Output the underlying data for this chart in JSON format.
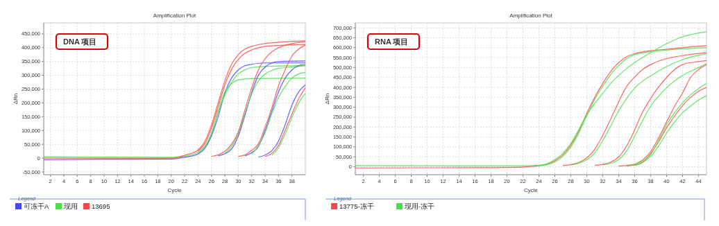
{
  "chart_data": [
    {
      "type": "line",
      "title": "Amplification Plot",
      "xlabel": "Cycle",
      "ylabel": "ΔRn",
      "legend_title": "Legend",
      "legend": "bottom",
      "grid": true,
      "marker": "none",
      "line_style": "solid",
      "annotations": [
        "DNA 项目"
      ],
      "xlim": [
        1,
        40
      ],
      "xticks": [
        2,
        4,
        6,
        8,
        10,
        12,
        14,
        16,
        18,
        20,
        22,
        24,
        26,
        28,
        30,
        32,
        34,
        36,
        38
      ],
      "ylim": [
        -60000,
        490000
      ],
      "yticks": [
        {
          "value": -50000,
          "label": "-50,000"
        },
        {
          "value": 0,
          "label": "0"
        },
        {
          "value": 50000,
          "label": "50,000"
        },
        {
          "value": 100000,
          "label": "100,000"
        },
        {
          "value": 150000,
          "label": "150,000"
        },
        {
          "value": 200000,
          "label": "200,000"
        },
        {
          "value": 250000,
          "label": "250,000"
        },
        {
          "value": 300000,
          "label": "300,000"
        },
        {
          "value": 350000,
          "label": "350,000"
        },
        {
          "value": 400000,
          "label": "400,000"
        },
        {
          "value": 450000,
          "label": "450,000"
        }
      ],
      "series": [
        {
          "name": "可冻干A",
          "color": "#4646ff",
          "x": [
            1,
            10,
            20,
            22,
            24,
            25,
            26,
            27,
            28,
            29,
            30,
            31,
            32,
            34,
            40
          ],
          "values": [
            -6000,
            -4000,
            -3000,
            3000,
            15000,
            35000,
            80000,
            150000,
            235000,
            290000,
            320000,
            335000,
            340000,
            345000,
            345000
          ]
        },
        {
          "name": "现用",
          "color": "#46e046",
          "x": [
            1,
            10,
            20,
            22,
            24,
            25,
            26,
            27,
            28,
            29,
            30,
            31,
            32,
            34,
            40
          ],
          "values": [
            5000,
            4000,
            3000,
            6000,
            22000,
            43000,
            90000,
            165000,
            228000,
            275000,
            305000,
            320000,
            328000,
            332000,
            335000
          ]
        },
        {
          "name": "13695",
          "color": "#ff4646",
          "x": [
            1,
            10,
            20,
            22,
            24,
            25,
            26,
            27,
            28,
            29,
            30,
            31,
            32,
            34,
            36,
            40
          ],
          "values": [
            0,
            0,
            0,
            10000,
            30000,
            60000,
            120000,
            200000,
            280000,
            340000,
            375000,
            395000,
            405000,
            415000,
            420000,
            425000
          ]
        },
        {
          "color": "#ff4646",
          "x": [
            24,
            25,
            26,
            27,
            28,
            29,
            30,
            31,
            32,
            34,
            40
          ],
          "values": [
            25000,
            52000,
            108000,
            185000,
            265000,
            322000,
            358000,
            380000,
            392000,
            405000,
            412000
          ]
        },
        {
          "color": "#46e046",
          "x": [
            24,
            25,
            26,
            27,
            28,
            29,
            30,
            32,
            40
          ],
          "values": [
            18000,
            40000,
            88000,
            170000,
            240000,
            270000,
            283000,
            288000,
            290000
          ]
        },
        {
          "color": "#4646ff",
          "x": [
            27,
            28,
            29,
            30,
            31,
            32,
            33,
            34,
            35,
            36,
            40
          ],
          "values": [
            8000,
            16000,
            33000,
            80000,
            155000,
            238000,
            300000,
            330000,
            345000,
            350000,
            352000
          ]
        },
        {
          "color": "#46e046",
          "x": [
            28,
            29,
            30,
            31,
            32,
            33,
            34,
            35,
            36,
            38,
            40
          ],
          "values": [
            18000,
            42000,
            88000,
            163000,
            232000,
            280000,
            305000,
            318000,
            325000,
            330000,
            335000
          ]
        },
        {
          "color": "#ff4646",
          "x": [
            26,
            27,
            28,
            29,
            30,
            31,
            32,
            33,
            34,
            35,
            36,
            38,
            40
          ],
          "values": [
            6000,
            12000,
            25000,
            50000,
            95000,
            175000,
            255000,
            320000,
            360000,
            385000,
            400000,
            415000,
            422000
          ]
        },
        {
          "color": "#4646ff",
          "x": [
            31,
            32,
            33,
            34,
            35,
            36,
            37,
            38,
            39,
            40
          ],
          "values": [
            8000,
            20000,
            42000,
            100000,
            170000,
            240000,
            290000,
            320000,
            335000,
            340000
          ]
        },
        {
          "color": "#46e046",
          "x": [
            32,
            33,
            34,
            35,
            36,
            37,
            38,
            39,
            40
          ],
          "values": [
            14000,
            45000,
            92000,
            160000,
            220000,
            260000,
            290000,
            305000,
            310000
          ]
        },
        {
          "color": "#ff4646",
          "x": [
            30,
            31,
            32,
            33,
            34,
            35,
            36,
            37,
            38,
            39,
            40
          ],
          "values": [
            6000,
            12000,
            28000,
            52000,
            112000,
            182000,
            262000,
            320000,
            370000,
            395000,
            410000
          ]
        },
        {
          "color": "#4646ff",
          "x": [
            33,
            34,
            35,
            36,
            37,
            38,
            39,
            40
          ],
          "values": [
            4000,
            11000,
            27000,
            62000,
            122000,
            192000,
            240000,
            265000
          ]
        },
        {
          "color": "#ff4646",
          "x": [
            34,
            35,
            36,
            37,
            38,
            39,
            40
          ],
          "values": [
            6000,
            17000,
            47000,
            102000,
            160000,
            215000,
            255000
          ]
        },
        {
          "color": "#46e046",
          "x": [
            35,
            36,
            37,
            38,
            39,
            40
          ],
          "values": [
            10000,
            38000,
            88000,
            147000,
            200000,
            235000
          ]
        }
      ]
    },
    {
      "type": "line",
      "title": "Amplification Plot",
      "xlabel": "Cycle",
      "ylabel": "ΔRn",
      "legend_title": "Legend",
      "legend": "bottom",
      "grid": true,
      "marker": "none",
      "line_style": "solid",
      "annotations": [
        "RNA 项目"
      ],
      "xlim": [
        1,
        45
      ],
      "xticks": [
        2,
        4,
        6,
        8,
        10,
        12,
        14,
        16,
        18,
        20,
        22,
        24,
        26,
        28,
        30,
        32,
        34,
        36,
        38,
        40,
        42,
        44
      ],
      "ylim": [
        -40000,
        725000
      ],
      "yticks": [
        {
          "value": 0,
          "label": "0"
        },
        {
          "value": 50000,
          "label": "50,000"
        },
        {
          "value": 100000,
          "label": "100,000"
        },
        {
          "value": 150000,
          "label": "150,000"
        },
        {
          "value": 200000,
          "label": "200,000"
        },
        {
          "value": 250000,
          "label": "250,000"
        },
        {
          "value": 300000,
          "label": "300,000"
        },
        {
          "value": 350000,
          "label": "350,000"
        },
        {
          "value": 400000,
          "label": "400,000"
        },
        {
          "value": 450000,
          "label": "450,000"
        },
        {
          "value": 500000,
          "label": "500,000"
        },
        {
          "value": 550000,
          "label": "550,000"
        },
        {
          "value": 600000,
          "label": "600,000"
        },
        {
          "value": 650000,
          "label": "650,000"
        },
        {
          "value": 700000,
          "label": "700,000"
        }
      ],
      "series": [
        {
          "name": "13775-冻干",
          "color": "#ff4646",
          "x": [
            1,
            10,
            20,
            24,
            25,
            26,
            27,
            28,
            29,
            30,
            31,
            32,
            33,
            34,
            35,
            36,
            38,
            40,
            42,
            45
          ],
          "values": [
            -6000,
            -5000,
            -4000,
            5000,
            12000,
            30000,
            60000,
            110000,
            180000,
            270000,
            350000,
            420000,
            480000,
            525000,
            555000,
            570000,
            585000,
            592000,
            600000,
            610000
          ]
        },
        {
          "name": "现用-冻干",
          "color": "#46e046",
          "x": [
            1,
            10,
            20,
            24,
            25,
            26,
            27,
            28,
            29,
            30,
            31,
            32,
            33,
            34,
            35,
            36,
            38,
            40,
            42,
            45
          ],
          "values": [
            6000,
            5000,
            4000,
            8000,
            16000,
            36000,
            68000,
            118000,
            188000,
            262000,
            320000,
            370000,
            420000,
            460000,
            495000,
            525000,
            575000,
            620000,
            655000,
            680000
          ]
        },
        {
          "color": "#46e046",
          "x": [
            24,
            25,
            26,
            27,
            28,
            29,
            30,
            31,
            32,
            33,
            34,
            35,
            36,
            40,
            45
          ],
          "values": [
            6000,
            11000,
            24000,
            52000,
            100000,
            170000,
            255000,
            340000,
            405000,
            465000,
            510000,
            545000,
            565000,
            588000,
            600000
          ]
        },
        {
          "color": "#ff4646",
          "x": [
            27,
            28,
            29,
            30,
            31,
            32,
            33,
            34,
            35,
            36,
            37,
            38,
            40,
            42,
            45
          ],
          "values": [
            6000,
            11000,
            22000,
            45000,
            88000,
            158000,
            240000,
            328000,
            405000,
            452000,
            490000,
            515000,
            545000,
            560000,
            575000
          ]
        },
        {
          "color": "#46e046",
          "x": [
            28,
            29,
            30,
            31,
            32,
            33,
            34,
            35,
            36,
            37,
            38,
            40,
            42,
            45
          ],
          "values": [
            9000,
            18000,
            35000,
            70000,
            132000,
            206000,
            282000,
            345000,
            396000,
            432000,
            458000,
            505000,
            540000,
            570000
          ]
        },
        {
          "color": "#ff4646",
          "x": [
            31,
            32,
            33,
            34,
            35,
            36,
            37,
            38,
            39,
            40,
            41,
            42,
            44,
            45
          ],
          "values": [
            7000,
            12000,
            24000,
            50000,
            105000,
            186000,
            276000,
            344000,
            402000,
            450000,
            490000,
            515000,
            530000,
            535000
          ]
        },
        {
          "color": "#46e046",
          "x": [
            32,
            33,
            34,
            35,
            36,
            37,
            38,
            39,
            40,
            42,
            44,
            45
          ],
          "values": [
            9000,
            18000,
            36000,
            80000,
            154000,
            234000,
            305000,
            356000,
            398000,
            460000,
            500000,
            520000
          ]
        },
        {
          "color": "#ff4646",
          "x": [
            34,
            35,
            36,
            37,
            38,
            39,
            40,
            41,
            42,
            43,
            44,
            45
          ],
          "values": [
            3000,
            7000,
            13000,
            34000,
            76000,
            146000,
            226000,
            305000,
            372000,
            450000,
            490000,
            515000
          ]
        },
        {
          "color": "#ff4646",
          "x": [
            35,
            36,
            37,
            38,
            39,
            40,
            41,
            42,
            43,
            44,
            45
          ],
          "values": [
            4000,
            9000,
            22000,
            66000,
            126000,
            196000,
            256000,
            308000,
            350000,
            380000,
            400000
          ]
        },
        {
          "color": "#46e046",
          "x": [
            35,
            36,
            37,
            38,
            39,
            40,
            41,
            42,
            43,
            45
          ],
          "values": [
            5000,
            12000,
            28000,
            61000,
            133000,
            212000,
            272000,
            322000,
            362000,
            420000
          ]
        },
        {
          "color": "#46e046",
          "x": [
            36,
            37,
            38,
            39,
            40,
            41,
            42,
            43,
            44,
            45
          ],
          "values": [
            6000,
            22000,
            52000,
            106000,
            170000,
            226000,
            272000,
            306000,
            336000,
            358000
          ]
        }
      ]
    }
  ]
}
